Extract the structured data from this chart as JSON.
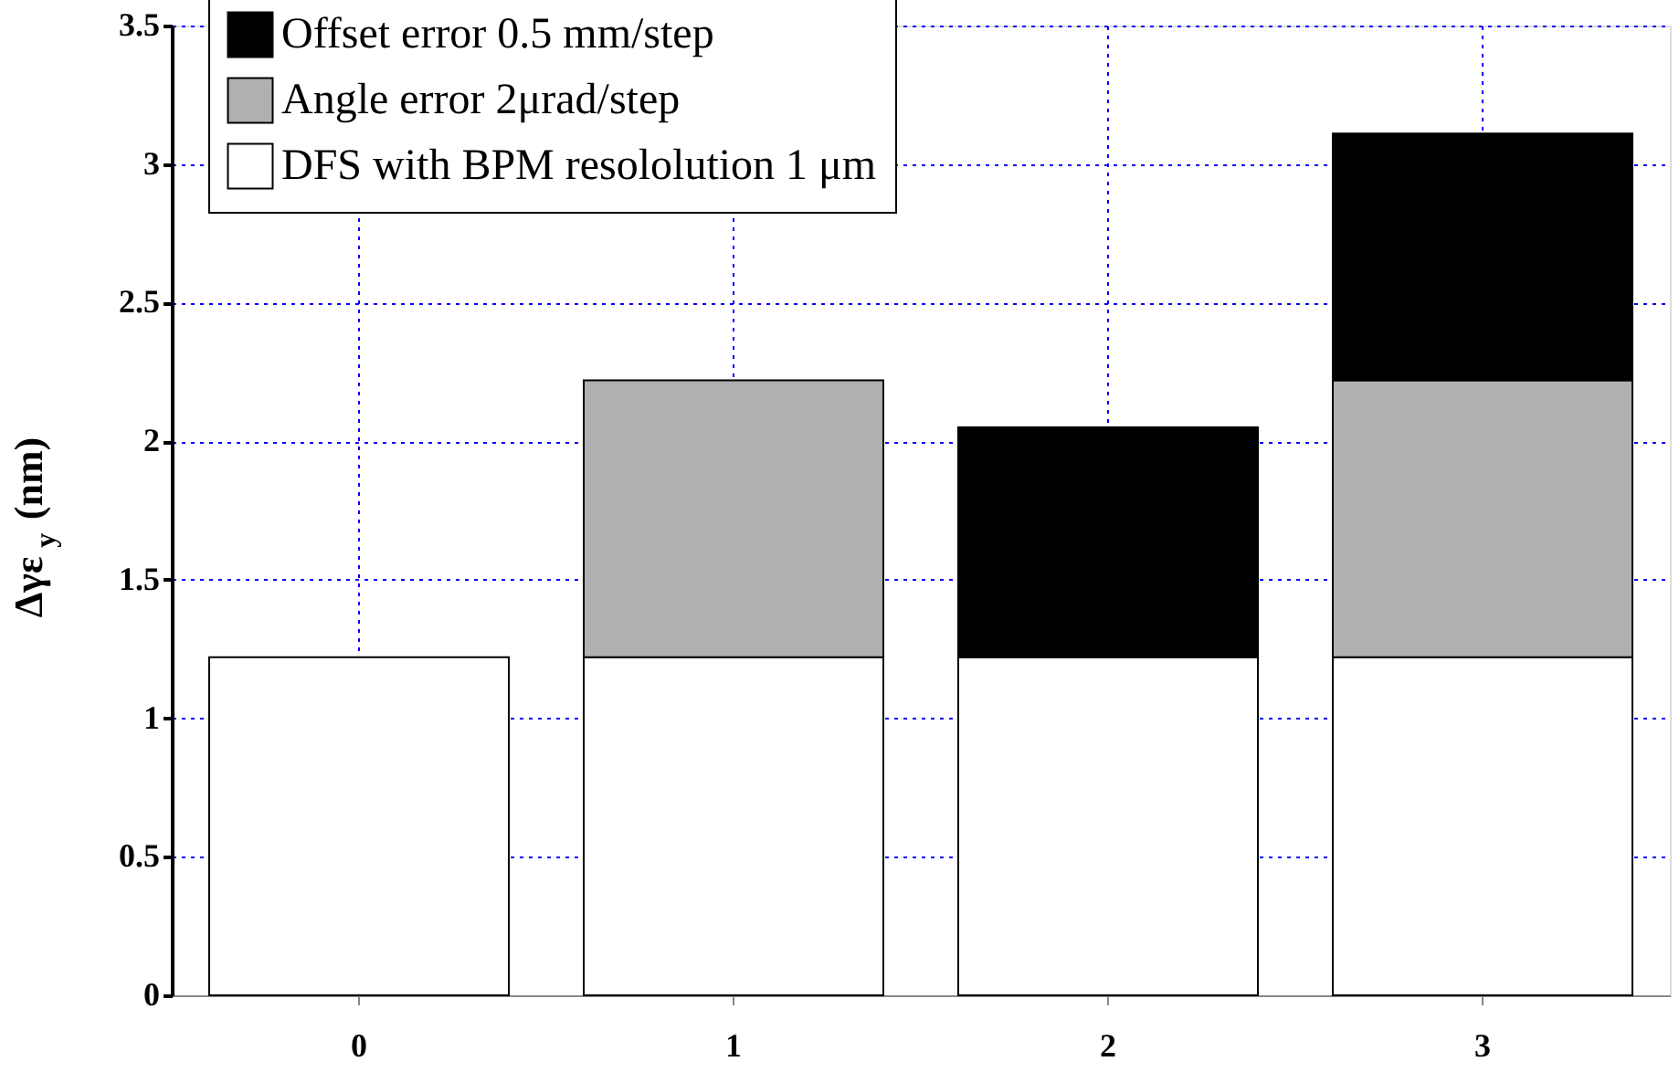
{
  "chart_data": {
    "type": "bar",
    "stacked": true,
    "ylabel": "Δγε$_{y}$ (nm)",
    "categories": [
      "0",
      "1",
      "2",
      "3"
    ],
    "series": [
      {
        "name": "DFS with BPM resololution 1 μm",
        "color": "#ffffff",
        "values": [
          1.22,
          1.22,
          1.22,
          1.22
        ]
      },
      {
        "name": "Angle error 2μrad/step",
        "color": "#b0b0b0",
        "values": [
          null,
          1.0,
          null,
          1.0
        ]
      },
      {
        "name": "Offset error 0.5 mm/step",
        "color": "#000000",
        "values": [
          null,
          null,
          0.83,
          0.89
        ]
      }
    ],
    "ylim": [
      0,
      3.5
    ],
    "yticks": [
      0,
      0.5,
      1,
      1.5,
      2,
      2.5,
      3,
      3.5
    ],
    "grid": true,
    "legend": "top left"
  }
}
